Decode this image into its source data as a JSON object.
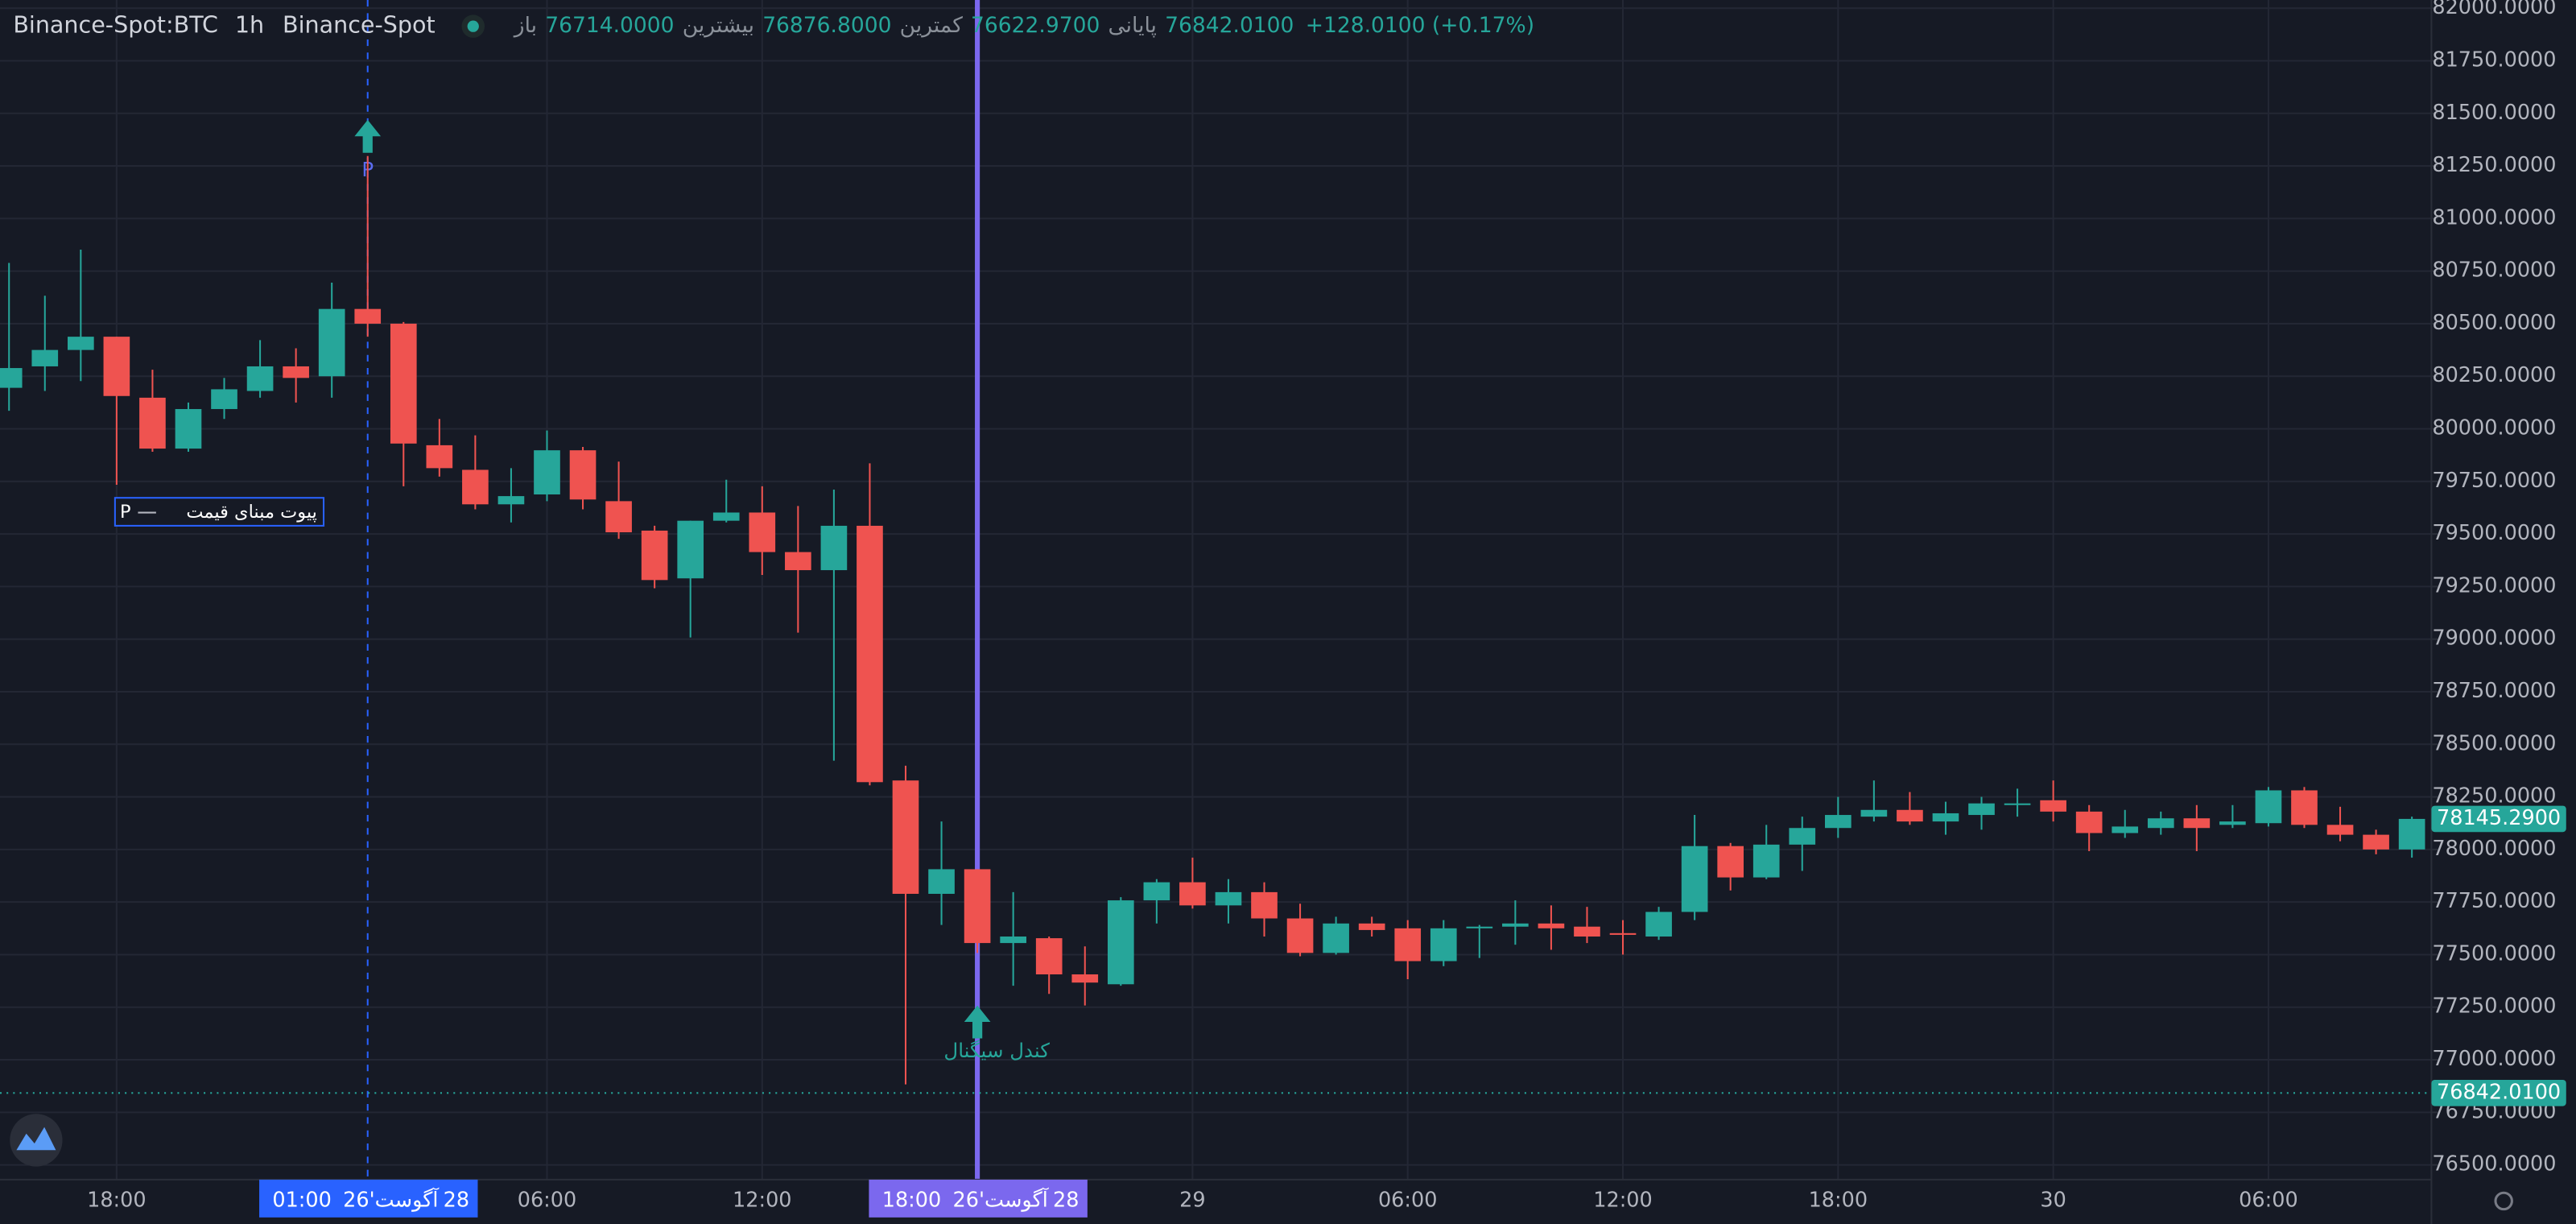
{
  "chart_data": {
    "type": "candlestick",
    "header": {
      "symbol": "Binance-Spot:BTC",
      "interval": "1h",
      "exchange": "Binance-Spot",
      "ohlc": [
        {
          "label": "باز",
          "value": "76714.0000"
        },
        {
          "label": "بیشترین",
          "value": "76876.8000"
        },
        {
          "label": "کمترین",
          "value": "76622.9700"
        },
        {
          "label": "پایانی",
          "value": "76842.0100"
        }
      ],
      "change": "+128.0100 (+0.17%)"
    },
    "categories": [
      null,
      null,
      null,
      "18:00",
      null,
      null,
      null,
      null,
      null,
      null,
      null,
      null,
      null,
      null,
      null,
      "06:00",
      null,
      null,
      null,
      null,
      null,
      "12:00",
      null,
      null,
      null,
      null,
      null,
      null,
      null,
      null,
      null,
      null,
      null,
      "29",
      null,
      null,
      null,
      null,
      null,
      "06:00",
      null,
      null,
      null,
      null,
      null,
      "12:00",
      null,
      null,
      null,
      null,
      null,
      "18:00",
      null,
      null,
      null,
      null,
      null,
      "30",
      null,
      null,
      null,
      null,
      null,
      "06:00",
      null,
      null,
      null,
      null
    ],
    "open": [
      80195,
      80297,
      80375,
      80438,
      80148,
      79906,
      80094,
      80180,
      80297,
      80250,
      80570,
      80500,
      79922,
      79805,
      79641,
      79688,
      79898,
      79656,
      79516,
      79289,
      79563,
      79602,
      79414,
      79328,
      79539,
      78328,
      77789,
      77906,
      77555,
      77578,
      77406,
      77359,
      77758,
      77844,
      77734,
      77797,
      77672,
      77508,
      77648,
      77625,
      77469,
      77625,
      77633,
      77648,
      77633,
      77602,
      77586,
      77703,
      78016,
      77867,
      78023,
      78102,
      78156,
      78188,
      78133,
      78164,
      78211,
      78234,
      78180,
      78078,
      78102,
      78148,
      78117,
      78125,
      78281,
      78117,
      78070,
      78000
    ],
    "high": [
      80789,
      80633,
      80852,
      80438,
      80281,
      80125,
      80242,
      80422,
      80383,
      80695,
      81297,
      80508,
      80047,
      79969,
      79813,
      79992,
      79914,
      79844,
      79539,
      79563,
      79758,
      79727,
      79633,
      79711,
      79836,
      78398,
      78133,
      77906,
      77797,
      77586,
      77539,
      77773,
      77859,
      77961,
      77859,
      77844,
      77742,
      77680,
      77680,
      77664,
      77664,
      77641,
      77758,
      77734,
      77727,
      77664,
      77727,
      78164,
      78031,
      78117,
      78156,
      78250,
      78328,
      78273,
      78227,
      78250,
      78289,
      78328,
      78211,
      78188,
      78180,
      78211,
      78211,
      78297,
      78297,
      78203,
      78094,
      78156
    ],
    "low": [
      80086,
      80180,
      80227,
      79734,
      79891,
      79891,
      80047,
      80148,
      80125,
      80148,
      80438,
      79727,
      79773,
      79617,
      79555,
      79656,
      79617,
      79477,
      79242,
      79008,
      79555,
      79305,
      79031,
      78422,
      78305,
      76883,
      77641,
      77508,
      77352,
      77313,
      77258,
      77352,
      77648,
      77719,
      77648,
      77586,
      77492,
      77500,
      77586,
      77383,
      77445,
      77484,
      77547,
      77523,
      77555,
      77500,
      77570,
      77664,
      77805,
      77859,
      77898,
      78055,
      78133,
      78117,
      78070,
      78094,
      78156,
      78133,
      77992,
      78055,
      78070,
      77992,
      78102,
      78109,
      78102,
      78039,
      77977,
      77961
    ],
    "close": [
      80289,
      80375,
      80438,
      80156,
      79906,
      80094,
      80188,
      80297,
      80242,
      80570,
      80500,
      79930,
      79813,
      79641,
      79680,
      79898,
      79664,
      79508,
      79281,
      79563,
      79602,
      79414,
      79328,
      79539,
      78320,
      77789,
      77906,
      77555,
      77586,
      77406,
      77367,
      77758,
      77844,
      77734,
      77797,
      77672,
      77508,
      77648,
      77617,
      77469,
      77625,
      77633,
      77648,
      77625,
      77586,
      77594,
      77703,
      78016,
      77867,
      78023,
      78102,
      78164,
      78188,
      78133,
      78172,
      78219,
      78219,
      78180,
      78078,
      78109,
      78148,
      78102,
      78133,
      78281,
      78117,
      78070,
      78000,
      78145.29
    ],
    "up_color": "#26a69a",
    "down_color": "#ef5350",
    "ylim": [
      76430,
      82039
    ],
    "yticks": [
      {
        "value": 76500,
        "label": "76500.0000"
      },
      {
        "value": 76750,
        "label": "76750.0000"
      },
      {
        "value": 77000,
        "label": "77000.0000"
      },
      {
        "value": 77250,
        "label": "77250.0000"
      },
      {
        "value": 77500,
        "label": "77500.0000"
      },
      {
        "value": 77750,
        "label": "77750.0000"
      },
      {
        "value": 78000,
        "label": "78000.0000"
      },
      {
        "value": 78250,
        "label": "78250.0000"
      },
      {
        "value": 78500,
        "label": "78500.0000"
      },
      {
        "value": 78750,
        "label": "78750.0000"
      },
      {
        "value": 79000,
        "label": "79000.0000"
      },
      {
        "value": 79250,
        "label": "79250.0000"
      },
      {
        "value": 79500,
        "label": "79500.0000"
      },
      {
        "value": 79750,
        "label": "79750.0000"
      },
      {
        "value": 80000,
        "label": "80000.0000"
      },
      {
        "value": 80250,
        "label": "80250.0000"
      },
      {
        "value": 80500,
        "label": "80500.0000"
      },
      {
        "value": 80750,
        "label": "80750.0000"
      },
      {
        "value": 81000,
        "label": "81000.0000"
      },
      {
        "value": 81250,
        "label": "81250.0000"
      },
      {
        "value": 81500,
        "label": "81500.0000"
      },
      {
        "value": 81750,
        "label": "81750.0000"
      },
      {
        "value": 82000,
        "label": "82000.0000"
      }
    ],
    "grid": true,
    "price_lines": [
      {
        "value": 78145.29,
        "label": "78145.2900",
        "color": "#26a69a",
        "line": false
      },
      {
        "value": 76842.01,
        "label": "76842.0100",
        "color": "#26a69a",
        "line": true
      }
    ],
    "crosshairs": [
      {
        "index": 10,
        "time": "01:00",
        "year": "26'",
        "month": "آگوست",
        "day": "28",
        "color": "#2962ff",
        "dashed": true
      },
      {
        "index": 27,
        "time": "18:00",
        "year": "26'",
        "month": "آگوست",
        "day": "28",
        "color": "#7b68ee",
        "dashed": false
      }
    ],
    "pivot_marker": {
      "index": 10,
      "text": "P"
    },
    "signal_marker": {
      "index": 27,
      "text": "کندل سیگنال"
    },
    "pivot_legend": {
      "symbol": "P",
      "text": "پیوت مبنای قیمت"
    }
  }
}
